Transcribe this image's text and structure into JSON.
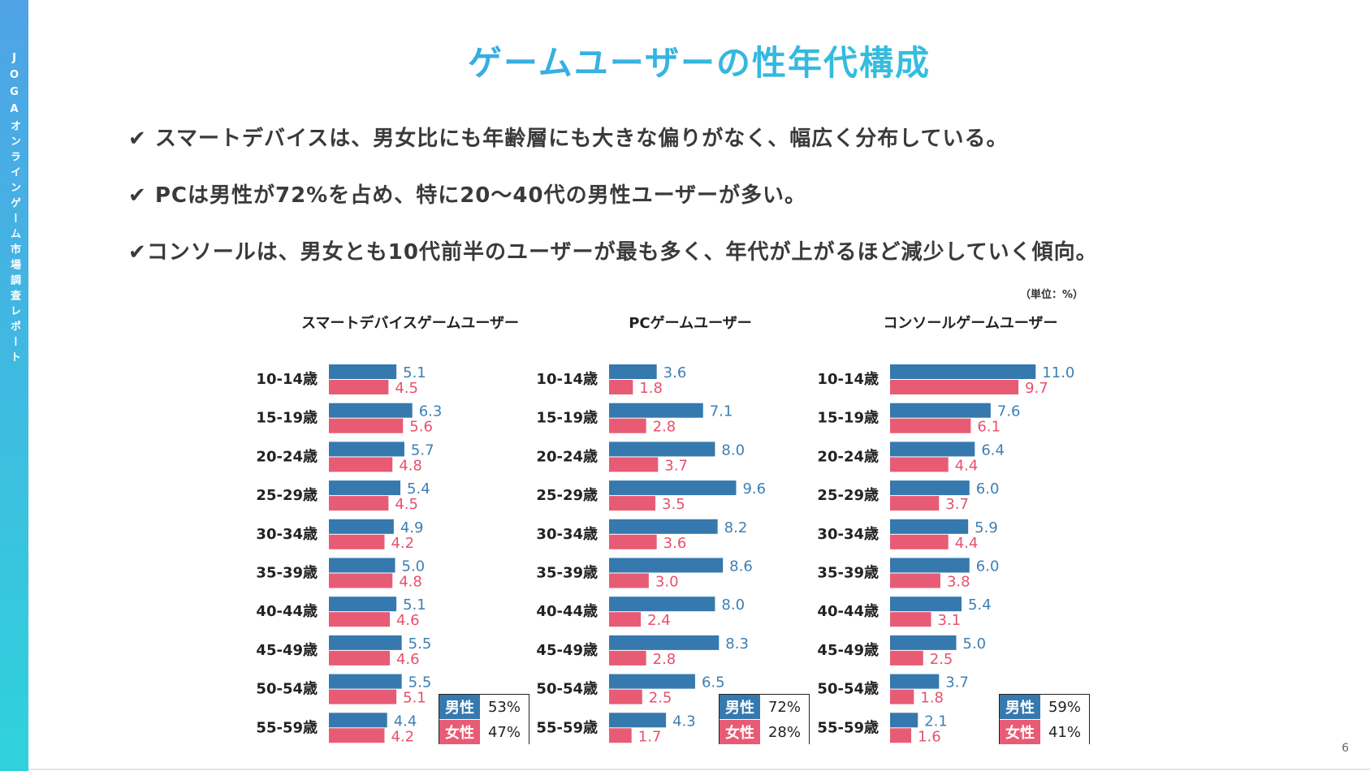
{
  "sidebar": {
    "text": "JOGAオンラインゲーム市場調査レポート"
  },
  "title": "ゲームユーザーの性年代構成",
  "points": [
    "✔ スマートデバイスは、男女比にも年齢層にも大きな偏りがなく、幅広く分布している。",
    "✔ PCは男性が72%を占め、特に20～40代の男性ユーザーが多い。",
    "✔コンソールは、男女とも10代前半のユーザーが最も多く、年代が上がるほど減少していく傾向。"
  ],
  "unit_label": "（単位：%）",
  "page_number": "6",
  "colors": {
    "male": "#3579ae",
    "female": "#e85b74",
    "male_label": "#3d7fb4",
    "female_label": "#e8506c"
  },
  "chart_data": [
    {
      "type": "bar",
      "orientation": "horizontal",
      "title": "スマートデバイスゲームユーザー",
      "categories": [
        "10-14歳",
        "15-19歳",
        "20-24歳",
        "25-29歳",
        "30-34歳",
        "35-39歳",
        "40-44歳",
        "45-49歳",
        "50-54歳",
        "55-59歳"
      ],
      "series": [
        {
          "name": "男性",
          "values": [
            5.1,
            6.3,
            5.7,
            5.4,
            4.9,
            5.0,
            5.1,
            5.5,
            5.5,
            4.4
          ]
        },
        {
          "name": "女性",
          "values": [
            4.5,
            5.6,
            4.8,
            4.5,
            4.2,
            4.8,
            4.6,
            4.6,
            5.1,
            4.2
          ]
        }
      ],
      "labels": {
        "male": [
          "5.1",
          "6.3",
          "5.7",
          "5.4",
          "4.9",
          "5.0",
          "5.1",
          "5.5",
          "5.5",
          "4.4"
        ],
        "female": [
          "4.5",
          "5.6",
          "4.8",
          "4.5",
          "4.2",
          "4.8",
          "4.6",
          "4.6",
          "5.1",
          "4.2"
        ]
      },
      "legend": [
        {
          "label": "男性",
          "value": "53%"
        },
        {
          "label": "女性",
          "value": "47%"
        }
      ],
      "legend_position": "bottom-right"
    },
    {
      "type": "bar",
      "orientation": "horizontal",
      "title": "PCゲームユーザー",
      "categories": [
        "10-14歳",
        "15-19歳",
        "20-24歳",
        "25-29歳",
        "30-34歳",
        "35-39歳",
        "40-44歳",
        "45-49歳",
        "50-54歳",
        "55-59歳"
      ],
      "series": [
        {
          "name": "男性",
          "values": [
            3.6,
            7.1,
            8.0,
            9.6,
            8.2,
            8.6,
            8.0,
            8.3,
            6.5,
            4.3
          ]
        },
        {
          "name": "女性",
          "values": [
            1.8,
            2.8,
            3.7,
            3.5,
            3.6,
            3.0,
            2.4,
            2.8,
            2.5,
            1.7
          ]
        }
      ],
      "labels": {
        "male": [
          "3.6",
          "7.1",
          "8.0",
          "9.6",
          "8.2",
          "8.6",
          "8.0",
          "8.3",
          "6.5",
          "4.3"
        ],
        "female": [
          "1.8",
          "2.8",
          "3.7",
          "3.5",
          "3.6",
          "3.0",
          "2.4",
          "2.8",
          "2.5",
          "1.7"
        ]
      },
      "legend": [
        {
          "label": "男性",
          "value": "72%"
        },
        {
          "label": "女性",
          "value": "28%"
        }
      ],
      "legend_position": "bottom-right"
    },
    {
      "type": "bar",
      "orientation": "horizontal",
      "title": "コンソールゲームユーザー",
      "categories": [
        "10-14歳",
        "15-19歳",
        "20-24歳",
        "25-29歳",
        "30-34歳",
        "35-39歳",
        "40-44歳",
        "45-49歳",
        "50-54歳",
        "55-59歳"
      ],
      "series": [
        {
          "name": "男性",
          "values": [
            11.0,
            7.6,
            6.4,
            6.0,
            5.9,
            6.0,
            5.4,
            5.0,
            3.7,
            2.1
          ]
        },
        {
          "name": "女性",
          "values": [
            9.7,
            6.1,
            4.4,
            3.7,
            4.4,
            3.8,
            3.1,
            2.5,
            1.8,
            1.6
          ]
        }
      ],
      "labels": {
        "male": [
          "11.0",
          "7.6",
          "6.4",
          "6.0",
          "5.9",
          "6.0",
          "5.4",
          "5.0",
          "3.7",
          "2.1"
        ],
        "female": [
          "9.7",
          "6.1",
          "4.4",
          "3.7",
          "4.4",
          "3.8",
          "3.1",
          "2.5",
          "1.8",
          "1.6"
        ]
      },
      "legend": [
        {
          "label": "男性",
          "value": "59%"
        },
        {
          "label": "女性",
          "value": "41%"
        }
      ],
      "legend_position": "bottom-right"
    }
  ]
}
